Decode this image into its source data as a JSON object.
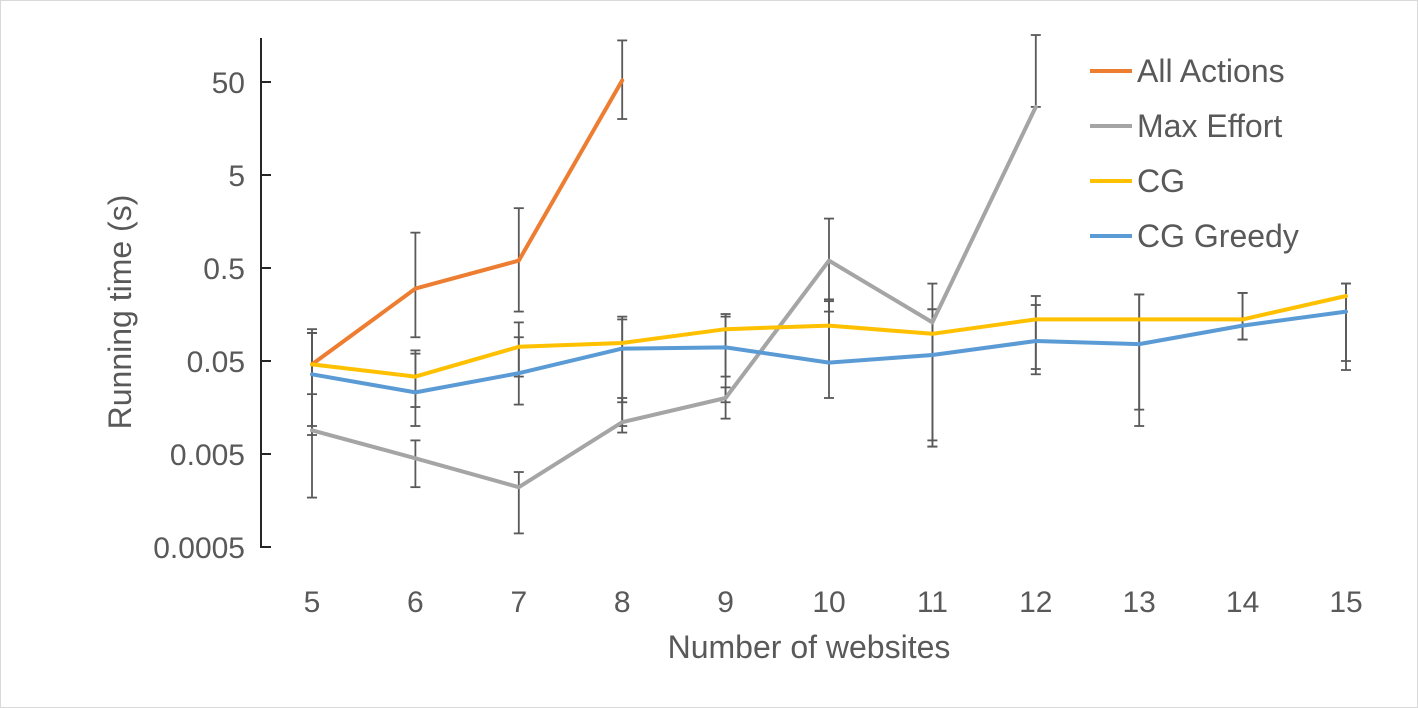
{
  "chart_data": {
    "type": "line",
    "title": "",
    "xlabel": "Number of websites",
    "ylabel": "Running time (s)",
    "x": [
      5,
      6,
      7,
      8,
      9,
      10,
      11,
      12,
      13,
      14,
      15
    ],
    "yscale": "log",
    "ylim": [
      0.0005,
      100
    ],
    "yticks": [
      0.0005,
      0.005,
      0.05,
      0.5,
      5,
      50
    ],
    "ytick_labels": [
      "0.0005",
      "0.005",
      "0.05",
      "0.5",
      "5",
      "50"
    ],
    "xticks": [
      5,
      6,
      7,
      8,
      9,
      10,
      11,
      12,
      13,
      14,
      15
    ],
    "xtick_labels": [
      "5",
      "6",
      "7",
      "8",
      "9",
      "10",
      "11",
      "12",
      "13",
      "14",
      "15"
    ],
    "grid": false,
    "legend_position": "top-right",
    "series": [
      {
        "name": "All Actions",
        "color": "#ED7D31",
        "values": [
          0.046,
          0.3,
          0.6,
          52,
          null,
          null,
          null,
          null,
          null,
          null,
          null
        ],
        "err_low": [
          0.01,
          0.09,
          0.17,
          20,
          null,
          null,
          null,
          null,
          null,
          null,
          null
        ],
        "err_high": [
          0.11,
          1.2,
          2.2,
          140,
          null,
          null,
          null,
          null,
          null,
          null,
          null
        ]
      },
      {
        "name": "Max Effort",
        "color": "#A5A5A5",
        "values": [
          0.009,
          0.0045,
          0.0022,
          0.011,
          0.02,
          0.6,
          0.13,
          27,
          null,
          null,
          null
        ],
        "err_low": [
          0.0017,
          0.0022,
          0.0007,
          0.0085,
          0.012,
          0.17,
          0.006,
          27,
          null,
          null,
          null
        ],
        "err_high": [
          0.1,
          0.007,
          0.0032,
          0.02,
          0.026,
          1.7,
          0.34,
          160,
          null,
          null,
          null
        ]
      },
      {
        "name": "CG",
        "color": "#FFC000",
        "values": [
          0.046,
          0.034,
          0.071,
          0.078,
          0.11,
          0.12,
          0.098,
          0.14,
          0.14,
          0.14,
          0.25
        ],
        "err_low": [
          0.022,
          0.016,
          0.034,
          0.018,
          0.034,
          0.048,
          0.007,
          0.041,
          0.015,
          0.085,
          0.05
        ],
        "err_high": [
          0.1,
          0.065,
          0.13,
          0.15,
          0.16,
          0.23,
          0.18,
          0.25,
          0.26,
          0.27,
          0.34
        ]
      },
      {
        "name": "CG Greedy",
        "color": "#5B9BD5",
        "values": [
          0.036,
          0.023,
          0.037,
          0.068,
          0.07,
          0.048,
          0.058,
          0.082,
          0.076,
          0.12,
          0.17
        ],
        "err_low": [
          0.008,
          0.01,
          0.017,
          0.01,
          0.018,
          0.02,
          0.006,
          0.036,
          0.01,
          0.085,
          0.04
        ],
        "err_high": [
          0.1,
          0.06,
          0.09,
          0.14,
          0.15,
          0.22,
          0.18,
          0.2,
          0.26,
          0.27,
          0.34
        ]
      }
    ]
  }
}
